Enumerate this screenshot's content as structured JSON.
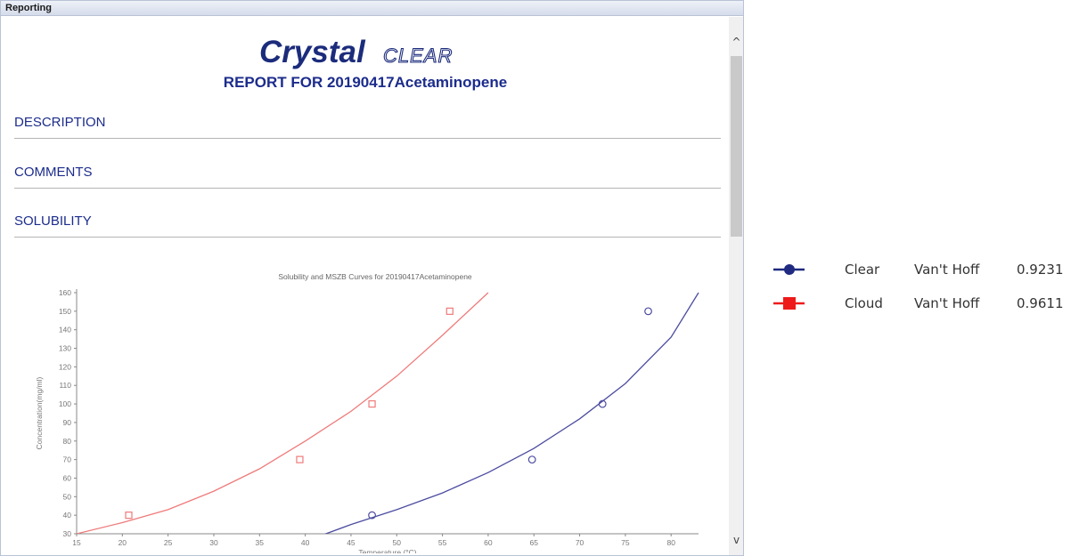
{
  "window": {
    "title": "Reporting"
  },
  "logo": {
    "bold": "Crystal",
    "light": "CLEAR"
  },
  "report": {
    "title": "REPORT FOR 20190417Acetaminopene"
  },
  "sections": [
    {
      "label": "DESCRIPTION"
    },
    {
      "label": "COMMENTS"
    },
    {
      "label": "SOLUBILITY"
    }
  ],
  "scrollbar": {
    "up_icon": "chevron-up-icon",
    "down_icon": "chevron-down-icon",
    "up_glyph": "^",
    "down_glyph": "v"
  },
  "legend": [
    {
      "name": "Clear",
      "model": "Van't Hoff",
      "value": "0.9231",
      "color": "#1f2a80",
      "marker": "circle"
    },
    {
      "name": "Cloud",
      "model": "Van't Hoff",
      "value": "0.9611",
      "color": "#ee1a1a",
      "marker": "square"
    }
  ],
  "chart_data": {
    "type": "scatter",
    "title": "Solubility and MSZB Curves for 20190417Acetaminopene",
    "xlabel": "Temperature (°C)",
    "ylabel": "Concentration(mg/ml)",
    "xlim": [
      15,
      83
    ],
    "ylim": [
      30,
      160
    ],
    "xticks": [
      15,
      20,
      25,
      30,
      35,
      40,
      45,
      50,
      55,
      60,
      65,
      70,
      75,
      80
    ],
    "yticks": [
      30,
      40,
      50,
      60,
      70,
      80,
      90,
      100,
      110,
      120,
      130,
      140,
      150,
      160
    ],
    "grid": false,
    "series": [
      {
        "color": "#ef7a7a",
        "marker": "square",
        "points": [
          [
            20.7,
            40
          ],
          [
            39.4,
            70
          ],
          [
            47.3,
            100
          ],
          [
            55.8,
            150
          ]
        ],
        "curve": [
          [
            15,
            30
          ],
          [
            20,
            36
          ],
          [
            25,
            43
          ],
          [
            30,
            53
          ],
          [
            35,
            65
          ],
          [
            40,
            80
          ],
          [
            45,
            96
          ],
          [
            50,
            115
          ],
          [
            55,
            137
          ],
          [
            60,
            160
          ]
        ]
      },
      {
        "color": "#4c4ca0",
        "marker": "circle",
        "points": [
          [
            47.3,
            40
          ],
          [
            64.8,
            70
          ],
          [
            72.5,
            100
          ],
          [
            77.5,
            150
          ]
        ],
        "curve": [
          [
            42,
            29.5
          ],
          [
            45,
            35
          ],
          [
            50,
            43
          ],
          [
            55,
            52
          ],
          [
            60,
            63
          ],
          [
            65,
            76
          ],
          [
            70,
            92
          ],
          [
            75,
            111
          ],
          [
            80,
            136
          ],
          [
            83,
            160
          ]
        ]
      }
    ]
  }
}
